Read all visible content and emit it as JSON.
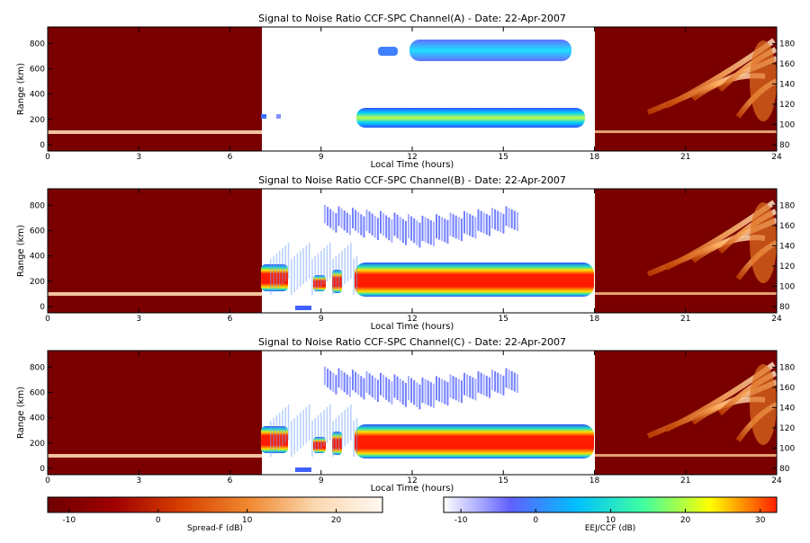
{
  "chart_data": [
    {
      "type": "heatmap",
      "title": "Signal to Noise Ratio CCF-SPC Channel(A) - Date: 22-Apr-2007",
      "xlabel": "Local Time (hours)",
      "ylabel": "Range (km)",
      "xlim": [
        0,
        24
      ],
      "xticks": [
        0,
        3,
        6,
        9,
        12,
        15,
        18,
        21,
        24
      ],
      "ylim": [
        -50,
        930
      ],
      "yticks": [
        0,
        200,
        400,
        600,
        800
      ],
      "y2lim": [
        73.75,
        196.25
      ],
      "y2ticks": [
        80,
        100,
        120,
        140,
        160,
        180
      ]
    },
    {
      "type": "heatmap",
      "title": "Signal to Noise Ratio CCF-SPC Channel(B) - Date: 22-Apr-2007",
      "xlabel": "Local Time (hours)",
      "ylabel": "Range (km)",
      "xlim": [
        0,
        24
      ],
      "xticks": [
        0,
        3,
        6,
        9,
        12,
        15,
        18,
        21,
        24
      ],
      "ylim": [
        -50,
        930
      ],
      "yticks": [
        0,
        200,
        400,
        600,
        800
      ],
      "y2lim": [
        73.75,
        196.25
      ],
      "y2ticks": [
        80,
        100,
        120,
        140,
        160,
        180
      ]
    },
    {
      "type": "heatmap",
      "title": "Signal to Noise Ratio CCF-SPC Channel(C) - Date: 22-Apr-2007",
      "xlabel": "Local Time (hours)",
      "ylabel": "Range (km)",
      "xlim": [
        0,
        24
      ],
      "xticks": [
        0,
        3,
        6,
        9,
        12,
        15,
        18,
        21,
        24
      ],
      "ylim": [
        -50,
        930
      ],
      "yticks": [
        0,
        200,
        400,
        600,
        800
      ],
      "y2lim": [
        73.75,
        196.25
      ],
      "y2ticks": [
        80,
        100,
        120,
        140,
        160,
        180
      ]
    }
  ],
  "colorbars": [
    {
      "label": "Spread-F (dB)",
      "lim": [
        -12.4,
        25.2
      ],
      "ticks": [
        -10,
        0,
        10,
        20
      ],
      "colors": [
        "#6e0000",
        "#a00000",
        "#d84000",
        "#f08830",
        "#fbd8b0",
        "#fff8f0"
      ]
    },
    {
      "label": "EEJ/CCF (dB)",
      "lim": [
        -12.3,
        32.2
      ],
      "ticks": [
        -10,
        0,
        10,
        20,
        30
      ],
      "colors": [
        "#ffffff",
        "#6060ff",
        "#00c0ff",
        "#40ffa0",
        "#ffff00",
        "#ff2000"
      ]
    }
  ]
}
